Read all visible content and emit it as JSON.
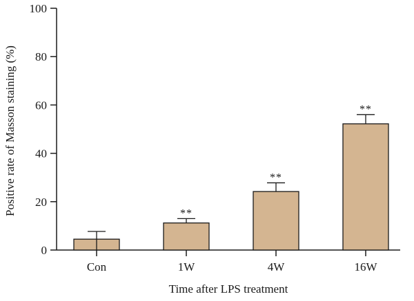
{
  "chart_data": {
    "type": "bar",
    "title": "",
    "xlabel": "Time after LPS treatment",
    "ylabel": "Positive rate of Masson staining (%)",
    "ylim": [
      0,
      100
    ],
    "yticks": [
      0,
      20,
      40,
      60,
      80,
      100
    ],
    "grid": false,
    "legend": "none",
    "categories": [
      "Con",
      "1W",
      "4W",
      "16W"
    ],
    "series": [
      {
        "values": [
          4.5,
          11.2,
          24.2,
          52.2
        ],
        "error_upper": [
          3.2,
          1.8,
          3.6,
          3.8
        ],
        "error_lower": [
          4.5,
          0,
          0,
          0
        ],
        "significance": [
          "",
          "**",
          "**",
          "**"
        ],
        "color": "#d4b591"
      }
    ]
  }
}
